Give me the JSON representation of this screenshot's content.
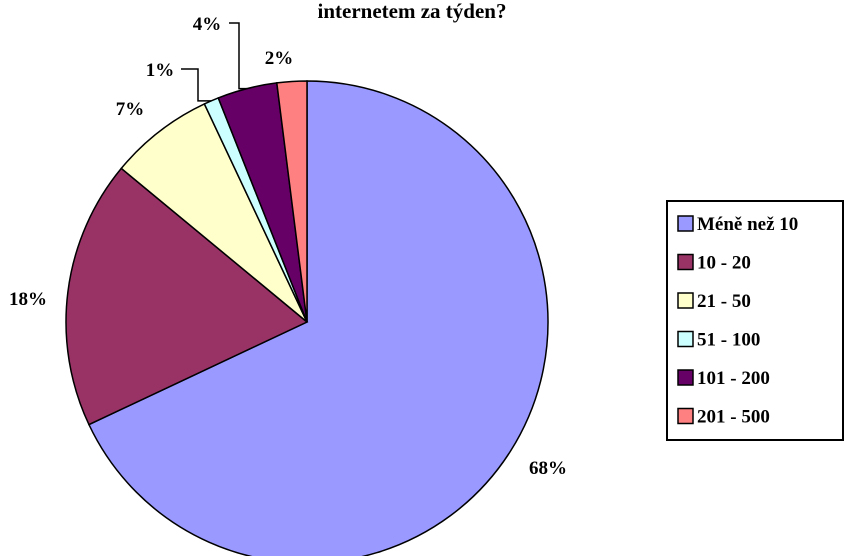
{
  "chart_data": {
    "type": "pie",
    "title": "internetem za týden?",
    "categories": [
      "Méně než 10",
      "10 - 20",
      "21 - 50",
      "51 - 100",
      "101 - 200",
      "201 - 500"
    ],
    "values": [
      68,
      18,
      7,
      1,
      4,
      2
    ],
    "value_labels": [
      "68%",
      "18%",
      "7%",
      "1%",
      "4%",
      "2%"
    ],
    "colors": [
      "#9999ff",
      "#993366",
      "#ffffcc",
      "#ccffff",
      "#660066",
      "#ff8080"
    ],
    "legend": "right"
  }
}
